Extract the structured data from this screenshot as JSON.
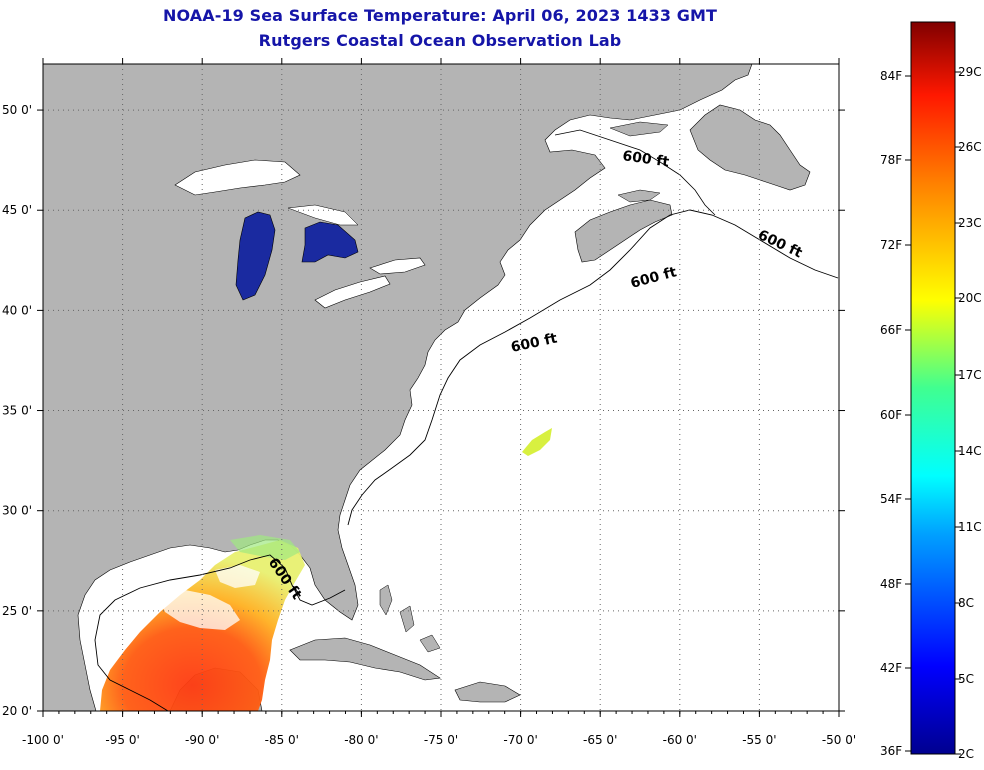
{
  "title": {
    "line1": "NOAA-19 Sea Surface Temperature:  April 06, 2023 1433 GMT",
    "line2": "Rutgers Coastal Ocean Observation Lab"
  },
  "map": {
    "lon_range": [
      -100,
      -50
    ],
    "lat_range": [
      20,
      52.3
    ],
    "x_ticks": [
      {
        "v": -100,
        "label": "-100 0'"
      },
      {
        "v": -95,
        "label": "-95 0'"
      },
      {
        "v": -90,
        "label": "-90 0'"
      },
      {
        "v": -85,
        "label": "-85 0'"
      },
      {
        "v": -80,
        "label": "-80 0'"
      },
      {
        "v": -75,
        "label": "-75 0'"
      },
      {
        "v": -70,
        "label": "-70 0'"
      },
      {
        "v": -65,
        "label": "-65 0'"
      },
      {
        "v": -60,
        "label": "-60 0'"
      },
      {
        "v": -55,
        "label": "-55 0'"
      },
      {
        "v": -50,
        "label": "-50 0'"
      }
    ],
    "y_ticks": [
      {
        "v": 20,
        "label": "20 0'"
      },
      {
        "v": 25,
        "label": "25 0'"
      },
      {
        "v": 30,
        "label": "30 0'"
      },
      {
        "v": 35,
        "label": "35 0'"
      },
      {
        "v": 40,
        "label": "40 0'"
      },
      {
        "v": 45,
        "label": "45 0'"
      },
      {
        "v": 50,
        "label": "50 0'"
      }
    ],
    "contour_labels": [
      "600 ft",
      "600 ft",
      "600 ft",
      "600 ft",
      "600 ft"
    ],
    "colors": {
      "land": "#b4b4b4",
      "ocean": "#ffffff",
      "grid": "#666666",
      "lake": "#1a2aa0"
    }
  },
  "colorbar": {
    "f_labels": [
      "84F",
      "78F",
      "72F",
      "66F",
      "60F",
      "54F",
      "48F",
      "42F",
      "36F"
    ],
    "c_labels": [
      "29C",
      "26C",
      "23C",
      "20C",
      "17C",
      "14C",
      "11C",
      "8C",
      "5C",
      "2C"
    ]
  }
}
